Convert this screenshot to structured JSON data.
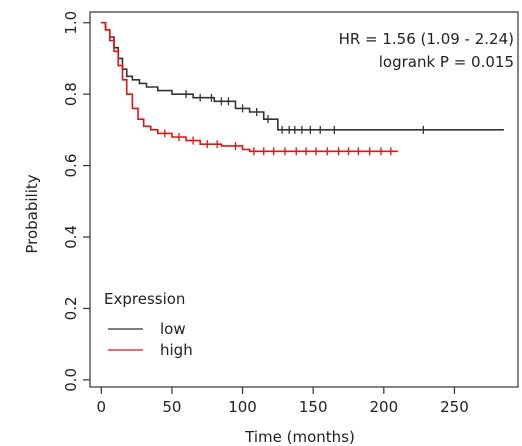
{
  "chart_data": {
    "type": "line",
    "subtype": "kaplan-meier",
    "xlabel": "Time (months)",
    "ylabel": "Probability",
    "xlim": [
      -8,
      295
    ],
    "ylim": [
      -0.02,
      1.03
    ],
    "x_ticks": [
      0,
      50,
      100,
      150,
      200,
      250
    ],
    "x_tick_labels": [
      "0",
      "50",
      "100",
      "150",
      "200",
      "250"
    ],
    "y_ticks": [
      0.0,
      0.2,
      0.4,
      0.6,
      0.8,
      1.0
    ],
    "y_tick_labels": [
      "0.0",
      "0.2",
      "0.4",
      "0.6",
      "0.8",
      "1.0"
    ],
    "grid": false,
    "legend": {
      "title": "Expression",
      "placement": "bottom-left",
      "entries": [
        {
          "label": "low",
          "color": "#333333"
        },
        {
          "label": "high",
          "color": "#e01414"
        }
      ]
    },
    "annotations": [
      "HR = 1.56 (1.09 - 2.24)",
      "logrank P = 0.015"
    ],
    "series": [
      {
        "name": "low",
        "color": "#333333",
        "x": [
          0,
          3,
          6,
          9,
          12,
          15,
          18,
          22,
          27,
          32,
          40,
          50,
          58,
          65,
          80,
          95,
          105,
          115,
          125,
          285
        ],
        "y": [
          1.0,
          0.98,
          0.96,
          0.93,
          0.9,
          0.87,
          0.85,
          0.84,
          0.83,
          0.82,
          0.81,
          0.8,
          0.8,
          0.79,
          0.78,
          0.76,
          0.75,
          0.73,
          0.7,
          0.7
        ],
        "censor_x": [
          60,
          70,
          78,
          85,
          90,
          100,
          110,
          118,
          128,
          133,
          137,
          142,
          148,
          155,
          165,
          228
        ]
      },
      {
        "name": "high",
        "color": "#e01414",
        "x": [
          0,
          3,
          6,
          9,
          12,
          15,
          18,
          22,
          26,
          30,
          35,
          40,
          50,
          60,
          70,
          85,
          100,
          105,
          210
        ],
        "y": [
          1.0,
          0.98,
          0.95,
          0.92,
          0.88,
          0.84,
          0.8,
          0.76,
          0.73,
          0.71,
          0.7,
          0.69,
          0.68,
          0.67,
          0.66,
          0.655,
          0.645,
          0.64,
          0.64
        ],
        "censor_x": [
          45,
          55,
          65,
          75,
          82,
          95,
          108,
          115,
          122,
          130,
          138,
          145,
          152,
          160,
          168,
          175,
          182,
          190,
          198,
          205
        ]
      }
    ]
  }
}
